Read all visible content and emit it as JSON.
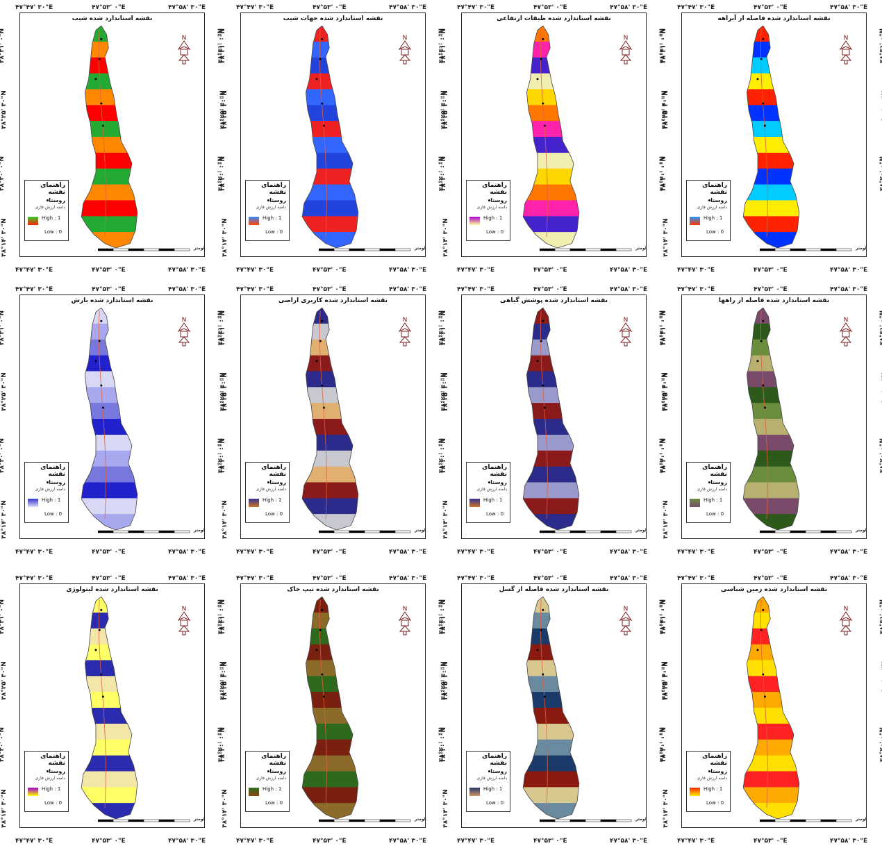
{
  "coords": {
    "top_left": "۴۷°۴۷' ۳۰\"E",
    "top_mid": "۴۷°۵۳' ۰\"E",
    "top_right": "۴۷°۵۸' ۳۰\"E",
    "bottom_left": "۴۷°۴۷' ۳۰\"E",
    "bottom_mid": "۴۷°۵۳' ۰\"E",
    "bottom_right": "۴۷°۵۸' ۳۰\"E",
    "lat_1": "۳۸°۳۱' ۰\"N",
    "lat_2": "۳۸°۲۵' ۳۰\"N",
    "lat_3": "۳۸°۲۰' ۰\"N",
    "lat_4": "۳۸°۱۴' ۳۰\"N"
  },
  "legend": {
    "title": "راهنمای نقشه",
    "village": "روستا",
    "range": "دامنه ارزش فازی",
    "high": "High : 1",
    "low": "Low : 0"
  },
  "scale_unit": "کیلومتر",
  "maps": [
    {
      "title": "نقشه استاندارد شده شیب",
      "colors": [
        "#22aa33",
        "#ff8800",
        "#ff0000"
      ],
      "ramp": [
        "#33cc33",
        "#ff2200"
      ]
    },
    {
      "title": "نقشه استاندارد شده جهات شیب",
      "colors": [
        "#2244dd",
        "#ee2222",
        "#3366ff"
      ],
      "ramp": [
        "#3388ff",
        "#ff4400"
      ]
    },
    {
      "title": "نقشه استاندارد شده طبقات ارتفاعی",
      "colors": [
        "#f2eeb0",
        "#ffd700",
        "#ff7700",
        "#ff22aa",
        "#4422cc"
      ],
      "ramp": [
        "#aa00cc",
        "#ffff99"
      ]
    },
    {
      "title": "نقشه استاندارد شده فاصله از آبراهه",
      "colors": [
        "#0033ff",
        "#00ccff",
        "#ffee00",
        "#ff2200"
      ],
      "ramp": [
        "#2299ff",
        "#ff3300"
      ]
    },
    {
      "title": "نقشه استاندارد شده بارش",
      "colors": [
        "#d8d8f4",
        "#a8a8ee",
        "#7777dd",
        "#2222cc"
      ],
      "ramp": [
        "#3333cc",
        "#ddddf8"
      ]
    },
    {
      "title": "نقشه استاندارد شده کاربری اراضی",
      "colors": [
        "#8b1a1a",
        "#2b2b8c",
        "#c8c8d0",
        "#e0b070"
      ],
      "ramp": [
        "#333399",
        "#cc7722"
      ]
    },
    {
      "title": "نقشه استاندارد شده پوشش گیاهی",
      "colors": [
        "#8b1a1a",
        "#2b2b8c",
        "#9999cc"
      ],
      "ramp": [
        "#333399",
        "#cc7722"
      ]
    },
    {
      "title": "نقشه استاندارد شده فاصله از راهها",
      "colors": [
        "#2d5a1b",
        "#6b8e3e",
        "#b8b070",
        "#7a4a6a"
      ],
      "ramp": [
        "#6b8e3e",
        "#7a4a6a"
      ]
    },
    {
      "title": "نقشه استاندارد شده لیتولوژی",
      "colors": [
        "#2b2bb0",
        "#f2e6a8",
        "#ffff66"
      ],
      "ramp": [
        "#9900cc",
        "#ffff00"
      ]
    },
    {
      "title": "نقشه استاندارد شده تیپ خاک",
      "colors": [
        "#7a2010",
        "#8b6a2a",
        "#2e6a1e"
      ],
      "ramp": [
        "#2e6a1e",
        "#8b4513"
      ]
    },
    {
      "title": "نقشه استاندارد شده فاصله از گسل",
      "colors": [
        "#1a3a6a",
        "#8a1a10",
        "#d8c890",
        "#6a8aa0"
      ],
      "ramp": [
        "#223366",
        "#cc9966"
      ]
    },
    {
      "title": "نقشه استاندارد شده زمین شناسی",
      "colors": [
        "#ffe000",
        "#ff2222",
        "#ffaa00"
      ],
      "ramp": [
        "#ff2200",
        "#ffee00"
      ]
    }
  ]
}
